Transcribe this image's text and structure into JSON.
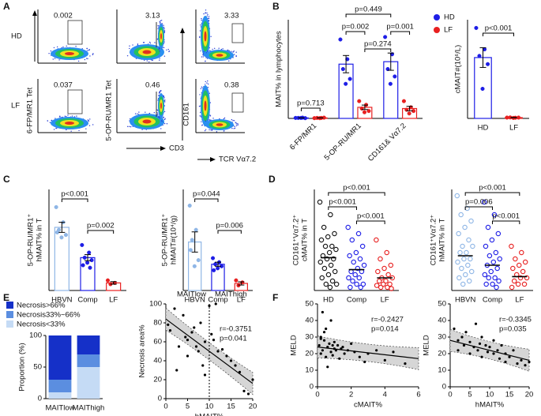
{
  "flow": {
    "panel": "A",
    "rows": [
      "HD",
      "LF"
    ],
    "gates": [
      [
        0.002,
        3.13,
        3.33
      ],
      [
        0.037,
        0.46,
        0.38
      ]
    ],
    "y_labels": [
      "6-FP/MR1 Tet",
      "5-OP-RU/MR1 Tet",
      "CD161"
    ],
    "x_labels": [
      "CD3",
      "TCR Vα7.2"
    ]
  },
  "chart_data": [
    {
      "type": "bar",
      "panel": "B",
      "ylabel": [
        "MAIT% in lymphocytes"
      ],
      "ylim": [
        0,
        4
      ],
      "rotate_labels": true,
      "categories": [
        "6-FP/MR1",
        "5-OP-RU/MR1",
        "CD161& Vα7.2"
      ],
      "series": [
        {
          "name": "HD",
          "color": "#1e1ee6",
          "values": [
            0.02,
            2.2,
            2.3
          ],
          "errors": [
            0.005,
            0.35,
            0.35
          ],
          "points": [
            [
              0.02,
              0.03,
              0.02,
              0.01,
              0.02
            ],
            [
              3.2,
              2.4,
              2.0,
              1.6,
              1.4
            ],
            [
              3.3,
              2.6,
              2.0,
              1.7,
              1.4
            ]
          ]
        },
        {
          "name": "LF",
          "color": "#e82020",
          "values": [
            0.02,
            0.45,
            0.4
          ],
          "errors": [
            0.005,
            0.09,
            0.09
          ],
          "points": [
            [
              0.01,
              0.02,
              0.02,
              0.03,
              0.01
            ],
            [
              0.7,
              0.55,
              0.4,
              0.3,
              0.25
            ],
            [
              0.7,
              0.45,
              0.35,
              0.3,
              0.2
            ]
          ]
        }
      ],
      "annotations": [
        "p=0.713",
        "p=0.002",
        "p=0.449",
        "p=0.274",
        "p=0.001"
      ]
    },
    {
      "type": "bar",
      "ylabel": [
        "cMAIT#(10⁶/L)"
      ],
      "ylim": [
        0,
        60
      ],
      "color_labels": true,
      "categories": [
        "HD",
        "LF"
      ],
      "series": [
        {
          "colors": [
            "#1e1ee6",
            "#e82020"
          ],
          "values": [
            37,
            0.5
          ],
          "errors": [
            6,
            0.1
          ],
          "points": [
            [
              55,
              42,
              38,
              33,
              18
            ],
            [
              0.5,
              0.4,
              0.6,
              0.5,
              0.3
            ]
          ]
        }
      ],
      "annotations": [
        "p<0.001"
      ]
    },
    {
      "type": "bar",
      "panel": "C",
      "ylabel": [
        "5-OP-RU/MR1⁺",
        "hMAIT% in T"
      ],
      "ylim": [
        0,
        40
      ],
      "color_labels": true,
      "categories": [
        "HBVN",
        "Comp",
        "LF"
      ],
      "series": [
        {
          "colors": [
            "#8fb6e6",
            "#1e1ee6",
            "#e82020"
          ],
          "values": [
            25,
            13,
            3
          ],
          "errors": [
            2,
            1.2,
            0.5
          ],
          "points": [
            [
              33,
              27,
              24,
              22,
              21,
              23
            ],
            [
              18,
              15,
              13,
              12,
              11,
              10,
              9
            ],
            [
              4,
              3,
              2.5
            ]
          ]
        }
      ],
      "annotations": [
        "p<0.001",
        "p=0.002"
      ]
    },
    {
      "type": "bar",
      "ylabel": [
        "5-OP-RU/MR1⁺",
        "hMAIT#(10⁴/g)"
      ],
      "ylim": [
        0,
        50
      ],
      "color_labels": true,
      "categories": [
        "HBVN",
        "Comp",
        "LF"
      ],
      "series": [
        {
          "colors": [
            "#8fb6e6",
            "#1e1ee6",
            "#e82020"
          ],
          "values": [
            24,
            13,
            3.5
          ],
          "errors": [
            5,
            1,
            0.8
          ],
          "points": [
            [
              42,
              30,
              25,
              15,
              12,
              20
            ],
            [
              16,
              14,
              13,
              12,
              11,
              10
            ],
            [
              5,
              4,
              2.5
            ]
          ]
        }
      ],
      "annotations": [
        "p=0.044",
        "p=0.006"
      ]
    },
    {
      "type": "dot",
      "panel": "D",
      "ylabel": [
        "CD161⁺Vα7.2⁺",
        "cMAIT% in T"
      ],
      "ylim": [
        0,
        16
      ],
      "color_labels": true,
      "open_markers": true,
      "categories": [
        "HD",
        "Comp",
        "LF"
      ],
      "series": [
        {
          "colors": [
            "#111111",
            "#1e1ee6",
            "#e82020"
          ],
          "values": [
            5.2,
            3.3,
            2
          ],
          "points": [
            [
              14,
              12,
              10,
              9,
              8.5,
              8,
              7,
              7,
              6.5,
              6,
              5.5,
              5,
              5,
              4.5,
              4,
              3.5,
              3,
              2.5,
              2,
              1.5,
              1,
              1,
              0.5
            ],
            [
              10,
              9,
              8,
              7,
              6,
              5.5,
              5,
              4.5,
              4,
              3.5,
              3,
              3,
              2.5,
              2,
              2,
              1.5,
              1,
              1,
              0.5,
              0.5
            ],
            [
              8,
              6,
              5,
              4,
              3.5,
              3,
              2.5,
              2,
              2,
              1.5,
              1.5,
              1,
              1,
              0.8,
              0.5,
              0.5,
              0.3
            ]
          ]
        }
      ],
      "annotations": [
        "p<0.001",
        "p<0.001",
        "p<0.001"
      ]
    },
    {
      "type": "dot",
      "ylabel": [
        "CD161⁺Vα7.2⁺",
        "hMAIT% in T"
      ],
      "ylim": [
        0,
        16
      ],
      "color_labels": true,
      "open_markers": true,
      "categories": [
        "HBVN",
        "Comp",
        "LF"
      ],
      "series": [
        {
          "colors": [
            "#8fb6e6",
            "#1e1ee6",
            "#e82020"
          ],
          "values": [
            5.5,
            4,
            2.2
          ],
          "points": [
            [
              15,
              13,
              12,
              11,
              10,
              9,
              8,
              7,
              7,
              6,
              6,
              5,
              5,
              4.5,
              4,
              3.5,
              3,
              2.5,
              2,
              1.5,
              1
            ],
            [
              14,
              12,
              10,
              9,
              8,
              7,
              6,
              5.5,
              5,
              4.5,
              4,
              3.5,
              3,
              2.5,
              2,
              2,
              1.5,
              1,
              1,
              0.5
            ],
            [
              7,
              6,
              5,
              4.5,
              4,
              3.5,
              3,
              2.5,
              2,
              2,
              1.5,
              1,
              1,
              0.5
            ]
          ]
        }
      ],
      "annotations": [
        "p<0.001",
        "p=0.006",
        "p<0.001"
      ]
    },
    {
      "type": "stacked",
      "panel": "E",
      "ylabel": [
        "Proportion (%)"
      ],
      "ylim": [
        0,
        100
      ],
      "yticks": [
        0,
        50,
        100
      ],
      "categories": [
        "MAITlow",
        "MAIThigh"
      ],
      "series": [
        {
          "name": "Necrosis>66%",
          "color": "#1530c8",
          "values": [
            70,
            30
          ]
        },
        {
          "name": "Necrosis33%~66%",
          "color": "#5b8ee0",
          "values": [
            20,
            20
          ]
        },
        {
          "name": "Necrosis<33%",
          "color": "#c5dbf5",
          "values": [
            10,
            50
          ]
        }
      ]
    },
    {
      "type": "scatter",
      "xlabel": "hMAIT%",
      "ylabel": [
        "Necrosis area%"
      ],
      "xlim": [
        0,
        20
      ],
      "xticks": [
        0,
        5,
        10,
        15,
        20
      ],
      "ylim": [
        0,
        100
      ],
      "yticks": [
        0,
        20,
        40,
        60,
        80,
        100
      ],
      "x": [
        0.5,
        1,
        2,
        2.5,
        3,
        4,
        4.5,
        5,
        5,
        6,
        6.5,
        7,
        7.5,
        8,
        8.5,
        9,
        9,
        10,
        10.5,
        11,
        11.5,
        12,
        13,
        14,
        15,
        16,
        17,
        18,
        19,
        20
      ],
      "y": [
        78,
        72,
        95,
        30,
        55,
        88,
        65,
        62,
        45,
        70,
        75,
        55,
        50,
        80,
        35,
        60,
        25,
        98,
        68,
        62,
        100,
        50,
        52,
        45,
        40,
        35,
        28,
        8,
        5,
        20
      ],
      "fit_line": {
        "x": [
          0,
          20
        ],
        "y": [
          84,
          16
        ]
      },
      "vline": 10,
      "annotations": [
        "r=-0.3751",
        "p=0.041",
        "MAITlow",
        "MAIThigh"
      ]
    },
    {
      "type": "scatter",
      "panel": "F",
      "xlabel": "cMAIT%",
      "ylabel": [
        "MELD"
      ],
      "xlim": [
        0,
        6
      ],
      "xticks": [
        0,
        2,
        4,
        6
      ],
      "ylim": [
        0,
        50
      ],
      "yticks": [
        0,
        10,
        20,
        30,
        40,
        50
      ],
      "x": [
        0.1,
        0.2,
        0.2,
        0.3,
        0.3,
        0.4,
        0.5,
        0.5,
        0.6,
        0.7,
        0.8,
        0.8,
        0.9,
        1,
        1,
        1.1,
        1.2,
        1.3,
        1.5,
        1.6,
        1.8,
        2,
        2.2,
        2.5,
        2.8,
        3,
        3.5,
        4,
        4.5,
        5.2,
        0.4,
        0.6,
        0.2,
        0.9,
        1.4
      ],
      "y": [
        25,
        30,
        20,
        45,
        22,
        28,
        35,
        18,
        24,
        26,
        40,
        21,
        19,
        23,
        27,
        22,
        25,
        17,
        24,
        20,
        22,
        26,
        21,
        18,
        15,
        20,
        22,
        16,
        21,
        14,
        33,
        12,
        29,
        25,
        23
      ],
      "fit_line": {
        "x": [
          0,
          6
        ],
        "y": [
          24,
          17
        ]
      },
      "annotations": [
        "r=-0.2427",
        "p=0.014"
      ]
    },
    {
      "type": "scatter",
      "xlabel": "hMAIT%",
      "ylabel": [
        "MELD"
      ],
      "xlim": [
        0,
        20
      ],
      "xticks": [
        0,
        5,
        10,
        15,
        20
      ],
      "ylim": [
        0,
        50
      ],
      "yticks": [
        0,
        10,
        20,
        30,
        40,
        50
      ],
      "x": [
        1,
        2,
        2,
        3,
        3.5,
        4,
        5,
        5,
        6,
        6.5,
        7,
        7.5,
        8,
        8,
        9,
        9.5,
        10,
        11,
        11,
        12,
        12.5,
        13,
        14,
        14,
        15,
        16,
        17,
        18,
        19,
        20
      ],
      "y": [
        35,
        28,
        22,
        30,
        25,
        33,
        20,
        27,
        24,
        38,
        22,
        26,
        30,
        18,
        25,
        21,
        24,
        28,
        20,
        22,
        17,
        25,
        20,
        15,
        18,
        22,
        14,
        16,
        13,
        15
      ],
      "fit_line": {
        "x": [
          0,
          20
        ],
        "y": [
          28,
          16
        ]
      },
      "annotations": [
        "r=-0.3345",
        "p=0.035"
      ]
    }
  ]
}
